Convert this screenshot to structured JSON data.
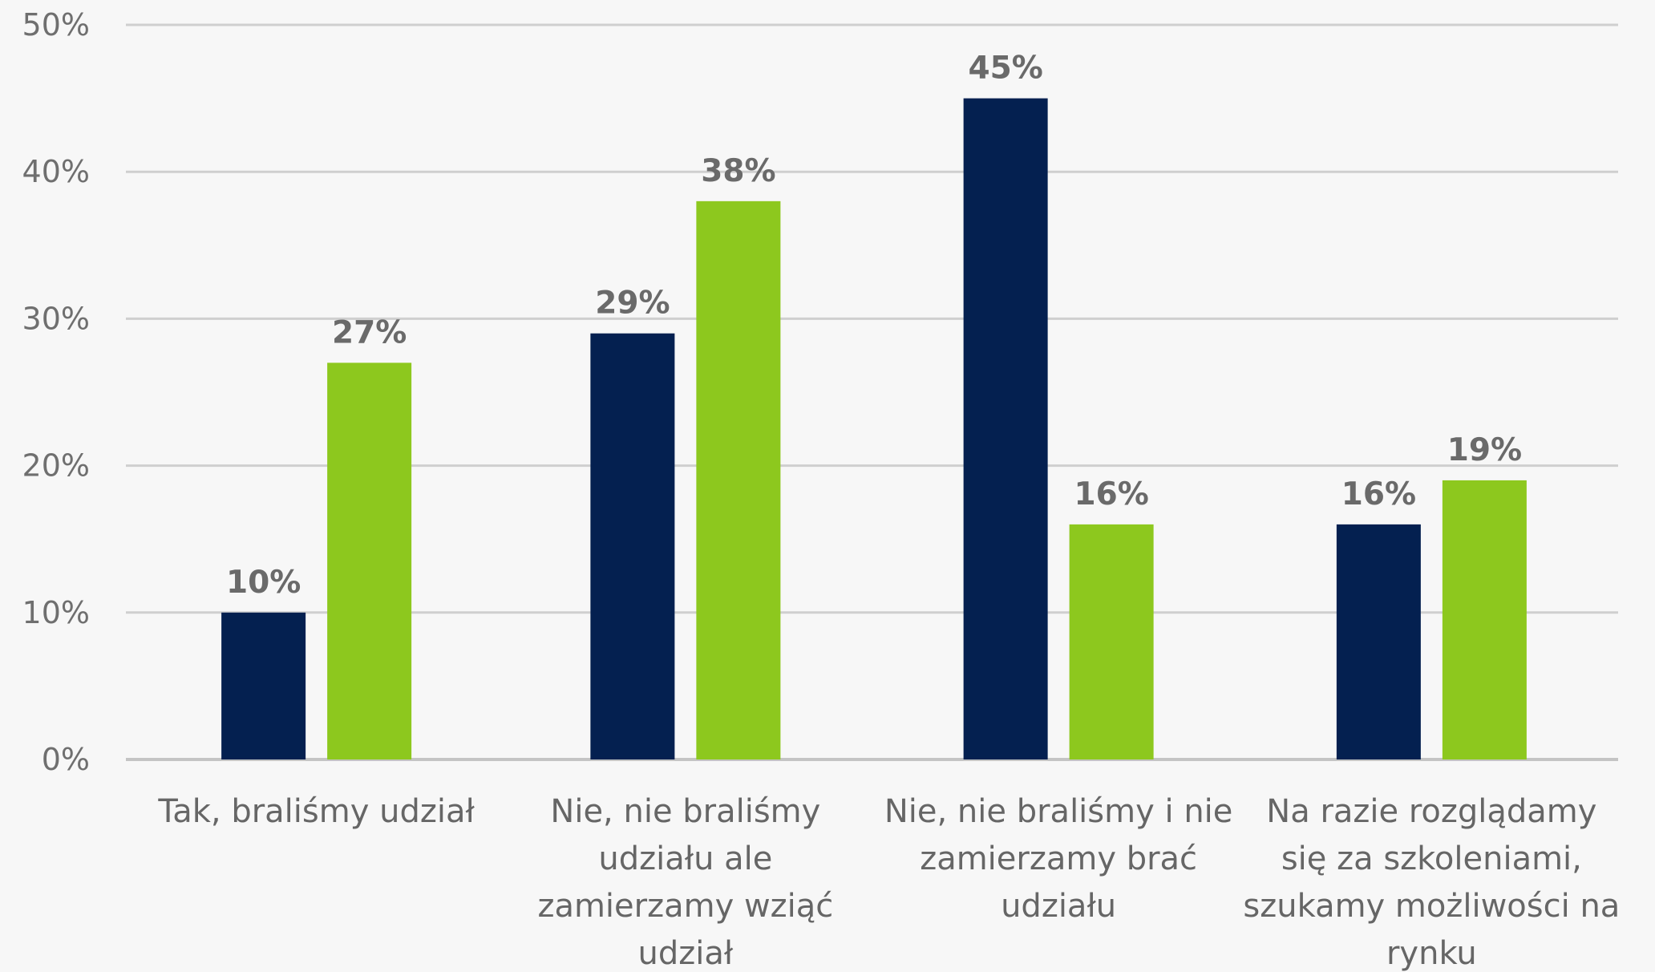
{
  "chart_data": {
    "type": "bar",
    "categories": [
      [
        "Tak, braliśmy udział"
      ],
      [
        "Nie, nie braliśmy",
        "udziału ale",
        "zamierzamy wziąć",
        "udział"
      ],
      [
        "Nie, nie braliśmy i nie",
        "zamierzamy brać",
        "udziału"
      ],
      [
        "Na razie rozglądamy",
        "się za szkoleniami,",
        "szukamy możliwości na",
        "rynku"
      ]
    ],
    "series": [
      {
        "values": [
          10,
          29,
          45,
          16
        ],
        "labels": [
          "10%",
          "29%",
          "45%",
          "16%"
        ],
        "color": "#042050"
      },
      {
        "values": [
          27,
          38,
          16,
          19
        ],
        "labels": [
          "27%",
          "38%",
          "16%",
          "19%"
        ],
        "color": "#8dc81e"
      }
    ],
    "ylim": [
      0,
      50
    ],
    "yticks": [
      0,
      10,
      20,
      30,
      40,
      50
    ],
    "ytick_labels": [
      "0%",
      "10%",
      "20%",
      "30%",
      "40%",
      "50%"
    ],
    "grid": true,
    "legend": "none"
  }
}
